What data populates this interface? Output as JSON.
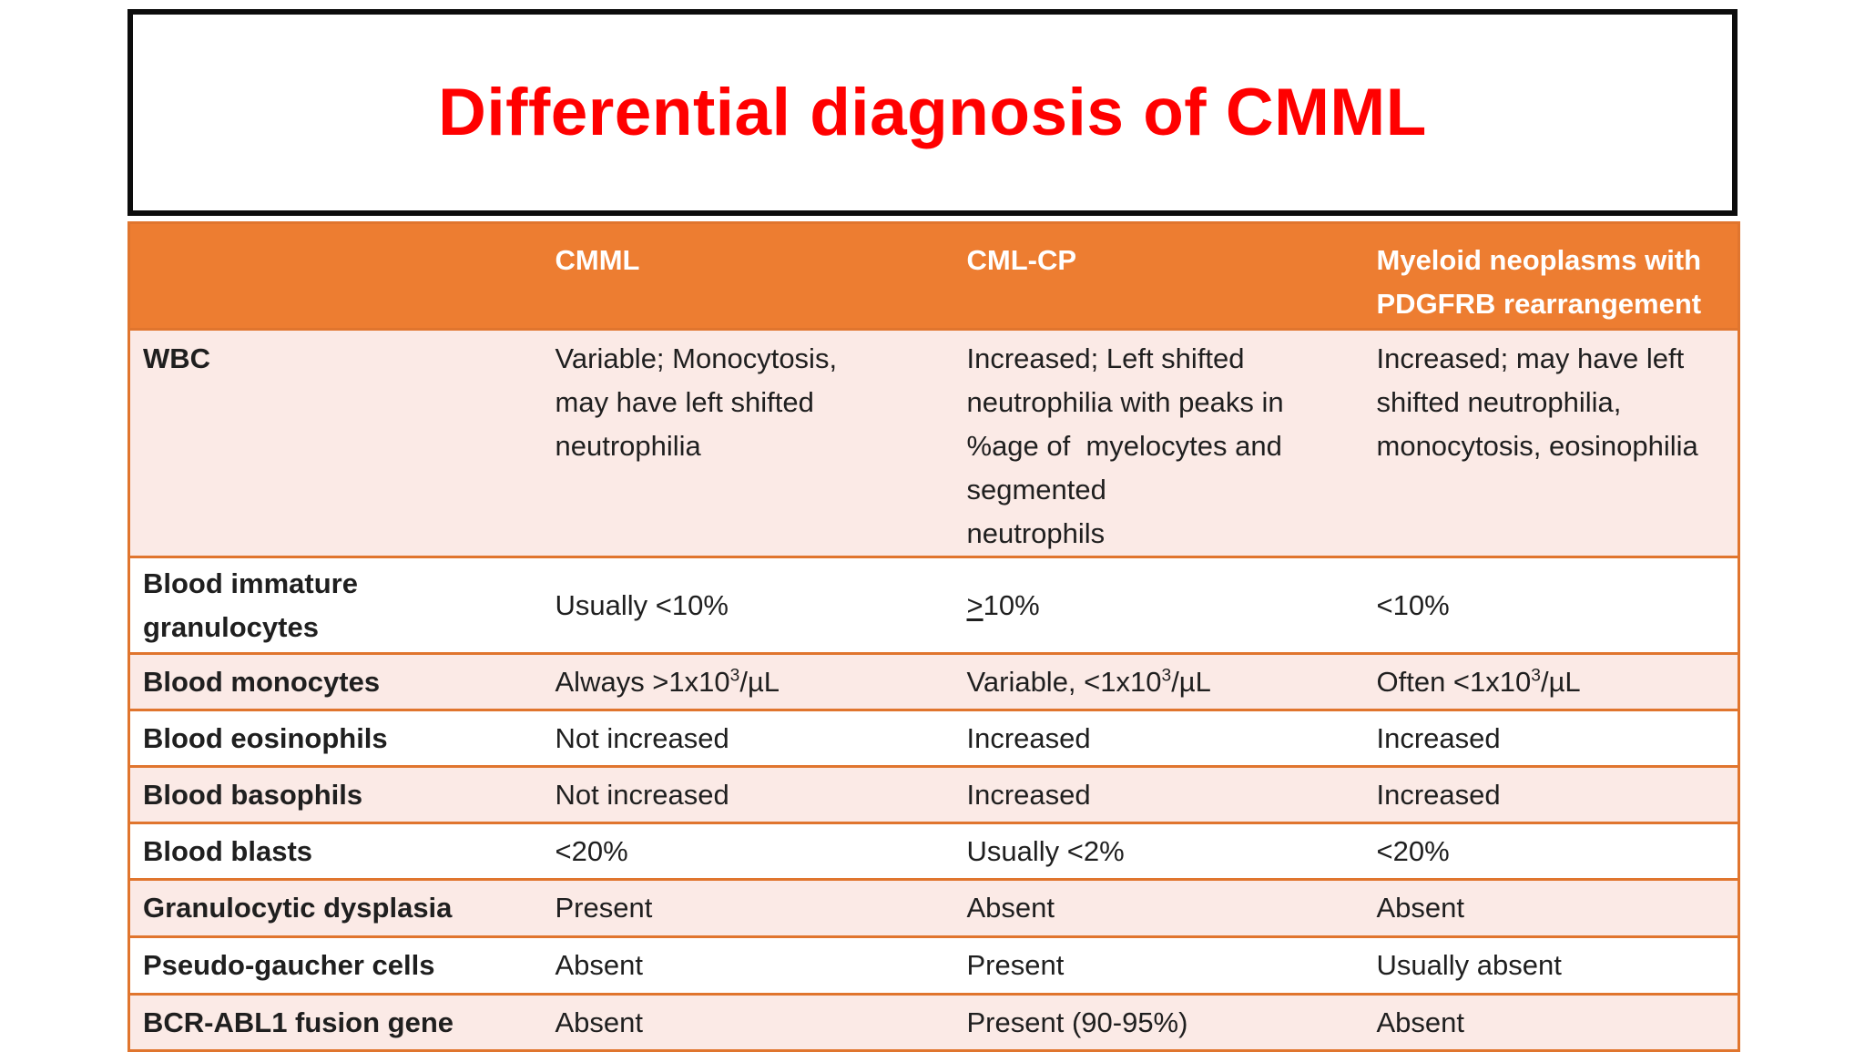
{
  "slide": {
    "title": "Differential diagnosis of CMML"
  },
  "theme": {
    "title_color": "#FF0000",
    "title_border": "#0C0C0C",
    "header_bg": "#ED7D31",
    "header_text": "#FFFFFF",
    "band_pink": "#FBEAE6",
    "band_white": "#FFFFFF",
    "border_orange": "#E0752E",
    "body_text": "#1F1F1F"
  },
  "table": {
    "columns": [
      {
        "label": ""
      },
      {
        "label": "CMML"
      },
      {
        "label": "CML-CP"
      },
      {
        "label": "Myeloid neoplasms with\nPDGFRB rearrangement"
      }
    ],
    "rows": [
      {
        "label": "WBC",
        "cells": [
          "Variable; Monocytosis,\nmay have left shifted\nneutrophilia",
          "Increased; Left shifted\nneutrophilia with peaks in\n%age of  myelocytes and\nsegmented\nneutrophils",
          "Increased; may have left\nshifted neutrophilia,\nmonocytosis, eosinophilia"
        ]
      },
      {
        "label": "Blood immature\ngranulocytes",
        "cells": [
          "Usually <10%",
          {
            "runs": [
              {
                "text": ">",
                "underline": true
              },
              {
                "text": "10%"
              }
            ]
          },
          "<10%"
        ]
      },
      {
        "label": "Blood monocytes",
        "cells": [
          {
            "runs": [
              {
                "text": "Always >1x10"
              },
              {
                "text": "3",
                "sup": true
              },
              {
                "text": "/µL"
              }
            ]
          },
          {
            "runs": [
              {
                "text": "Variable, <1x10"
              },
              {
                "text": "3",
                "sup": true
              },
              {
                "text": "/µL"
              }
            ]
          },
          {
            "runs": [
              {
                "text": "Often <1x10"
              },
              {
                "text": "3",
                "sup": true
              },
              {
                "text": "/µL"
              }
            ]
          }
        ]
      },
      {
        "label": "Blood eosinophils",
        "cells": [
          "Not increased",
          "Increased",
          "Increased"
        ]
      },
      {
        "label": "Blood basophils",
        "cells": [
          "Not increased",
          "Increased",
          "Increased"
        ]
      },
      {
        "label": "Blood blasts",
        "cells": [
          "<20%",
          "Usually <2%",
          "<20%"
        ]
      },
      {
        "label": "Granulocytic dysplasia",
        "cells": [
          "Present",
          "Absent",
          "Absent"
        ]
      },
      {
        "label": "Pseudo-gaucher cells",
        "cells": [
          "Absent",
          "Present",
          "Usually absent"
        ]
      },
      {
        "label": "BCR-ABL1 fusion gene",
        "cells": [
          "Absent",
          "Present (90-95%)",
          "Absent"
        ]
      }
    ]
  }
}
